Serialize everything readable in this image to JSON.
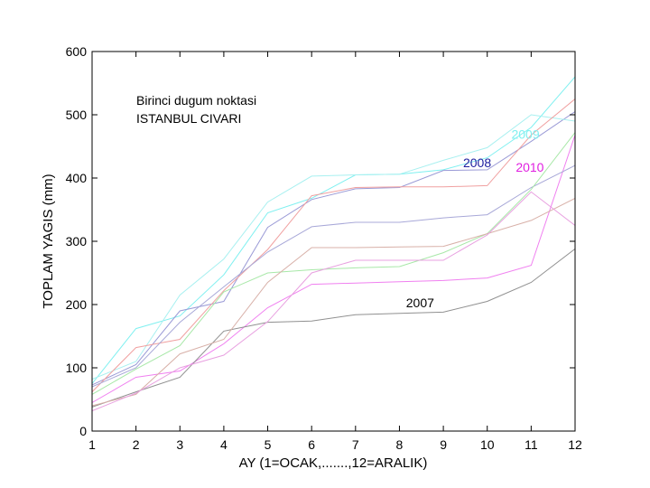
{
  "chart_data": {
    "type": "line",
    "xlabel": "AY (1=OCAK,.......,12=ARALIK)",
    "ylabel": "TOPLAM YAGIS (mm)",
    "xlim": [
      1,
      12
    ],
    "ylim": [
      0,
      600
    ],
    "xticks": [
      1,
      2,
      3,
      4,
      5,
      6,
      7,
      8,
      9,
      10,
      11,
      12
    ],
    "yticks": [
      0,
      100,
      200,
      300,
      400,
      500,
      600
    ],
    "grid": false,
    "annotations": [
      "Birinci dugum noktasi",
      "ISTANBUL CIVARI"
    ],
    "x": [
      1,
      2,
      3,
      4,
      5,
      6,
      7,
      8,
      9,
      10,
      11,
      12
    ],
    "series": [
      {
        "name": "2009",
        "color": "#7ff0f0",
        "values": [
          75,
          162,
          182,
          247,
          345,
          368,
          405,
          406,
          413,
          432,
          480,
          560
        ]
      },
      {
        "name": "2008",
        "color": "#9a9ad6",
        "values": [
          73,
          105,
          190,
          205,
          322,
          366,
          383,
          385,
          412,
          413,
          458,
          505
        ]
      },
      {
        "name": "2010",
        "color": "#f080f0",
        "values": [
          45,
          85,
          95,
          138,
          195,
          232,
          234,
          236,
          238,
          242,
          262,
          468
        ]
      },
      {
        "name": "2007",
        "color": "#909090",
        "values": [
          38,
          62,
          85,
          158,
          172,
          174,
          184,
          186,
          188,
          205,
          235,
          288
        ]
      },
      {
        "name": "",
        "color": "#a8f0f0",
        "values": [
          82,
          110,
          215,
          272,
          362,
          403,
          405,
          406,
          428,
          448,
          500,
          490
        ]
      },
      {
        "name": "",
        "color": "#f0a0a0",
        "values": [
          62,
          132,
          145,
          222,
          287,
          372,
          385,
          386,
          386,
          388,
          468,
          525
        ]
      },
      {
        "name": "",
        "color": "#a8a8d8",
        "values": [
          70,
          100,
          172,
          228,
          283,
          323,
          330,
          330,
          337,
          342,
          385,
          420
        ]
      },
      {
        "name": "",
        "color": "#a8e8a8",
        "values": [
          58,
          98,
          135,
          220,
          250,
          255,
          258,
          260,
          282,
          312,
          382,
          472
        ]
      },
      {
        "name": "",
        "color": "#d8b0a8",
        "values": [
          40,
          58,
          122,
          145,
          235,
          290,
          290,
          291,
          292,
          312,
          333,
          368
        ]
      },
      {
        "name": "",
        "color": "#e8a0e0",
        "values": [
          32,
          60,
          100,
          120,
          173,
          250,
          270,
          270,
          270,
          310,
          378,
          325
        ]
      }
    ]
  }
}
